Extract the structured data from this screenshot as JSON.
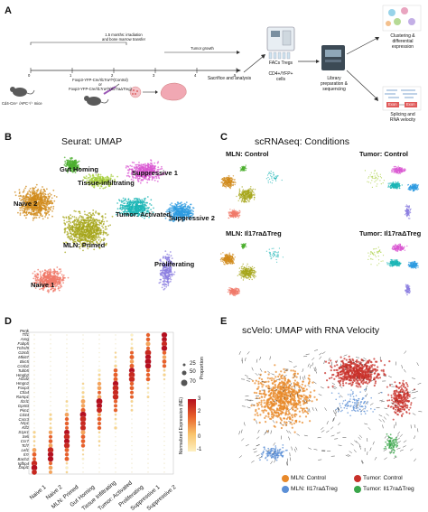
{
  "panelA": {
    "label": "A",
    "transfer_line1": "1.5 months: irradiation",
    "transfer_line2": "and bone marrow transfer",
    "tumor_growth": "Tumor growth",
    "timepoints": [
      "0",
      "1",
      "2",
      "3",
      "4",
      "5"
    ],
    "mice": "Cd4-Cre⁺ /APC⁺/⁺ mice",
    "genotype_line1": "Foxp3-YFP-Cre/Il17raᶠˡ/ᶠˡ(Control)",
    "genotype_line2": "or",
    "genotype_line3": "Foxp3-YFP-Cre/Il17raᶠˡ/ᶠˡ(Il17raΔTreg)",
    "sacrifice": "Sacrifice and analysis",
    "facs_line1": "FACs Tregs",
    "facs_line2": "CD4+/YFP+",
    "facs_line3": "cells",
    "library_line1": "Library",
    "library_line2": "preparation &",
    "library_line3": "sequencing",
    "out1_line1": "Clustering &",
    "out1_line2": "differential",
    "out1_line3": "expression",
    "out2_line1": "Splicing and",
    "out2_line2": "RNA velocity",
    "exon1": "Exon",
    "exon2": "Exon"
  },
  "panelB": {
    "label": "B",
    "title": "Seurat: UMAP",
    "clusters": [
      {
        "name": "Gut Homing",
        "color": "#4caf2f"
      },
      {
        "name": "Tissue-infiltrating",
        "color": "#a6ce39"
      },
      {
        "name": "Suppressive 1",
        "color": "#d957d2"
      },
      {
        "name": "Naive 2",
        "color": "#d08a1a"
      },
      {
        "name": "Tumor: Activated",
        "color": "#1bb5b5"
      },
      {
        "name": "Suppressive 2",
        "color": "#2e9be0"
      },
      {
        "name": "MLN: Primed",
        "color": "#a5a51a"
      },
      {
        "name": "Proliferating",
        "color": "#8b7de0"
      },
      {
        "name": "Naive 1",
        "color": "#f07a6a"
      }
    ]
  },
  "panelC": {
    "label": "C",
    "title": "scRNAseq: Conditions",
    "conditions": [
      "MLN: Control",
      "Tumor: Control",
      "MLN: Il17raΔTreg",
      "Tumor: Il17raΔTreg"
    ]
  },
  "panelD": {
    "label": "D",
    "genes": [
      "Penk",
      "Tff1",
      "Areg",
      "Fabp5",
      "Tnfrsf9",
      "Gzmb",
      "Mki67",
      "Birc5",
      "Ccnb2",
      "Tubb5",
      "Hmgb2",
      "H2afz",
      "Hmgn2",
      "Foxp3",
      "Ctla4",
      "Ramp1",
      "Il1rl1",
      "Gpr83",
      "Pim1",
      "Cd44",
      "Cxcr3",
      "Nrp1",
      "Klf2",
      "S1pr1",
      "Sell",
      "Ccr7",
      "Tcf7",
      "Lef1",
      "Il7r",
      "Bach2",
      "Igfbp4",
      "Dapl1"
    ],
    "clusters": [
      "Naive 1",
      "Naive 2",
      "MLN: Primed",
      "Gut Homing",
      "Tissue Infiltrating",
      "Tumor: Activated",
      "Proliferating",
      "Suppressive 1",
      "Suppressive 2"
    ],
    "size_legend_title": "Proportion",
    "size_legend_values": [
      "25",
      "50",
      "70"
    ],
    "color_legend_title": "Normalized Expression (NE)",
    "color_legend_ticks": [
      "3",
      "2",
      "1",
      "0",
      "-1"
    ],
    "color_low": "#fdf0c0",
    "color_high": "#b50f1f"
  },
  "panelE": {
    "label": "E",
    "title": "scVelo: UMAP with RNA Velocity",
    "legend": [
      {
        "label": "MLN: Control",
        "color": "#e8892a"
      },
      {
        "label": "Tumor: Control",
        "color": "#c8302a"
      },
      {
        "label": "MLN: Il17raΔTreg",
        "color": "#5b8fd6"
      },
      {
        "label": "Tumor: Il17raΔTreg",
        "color": "#3aa64a"
      }
    ]
  }
}
